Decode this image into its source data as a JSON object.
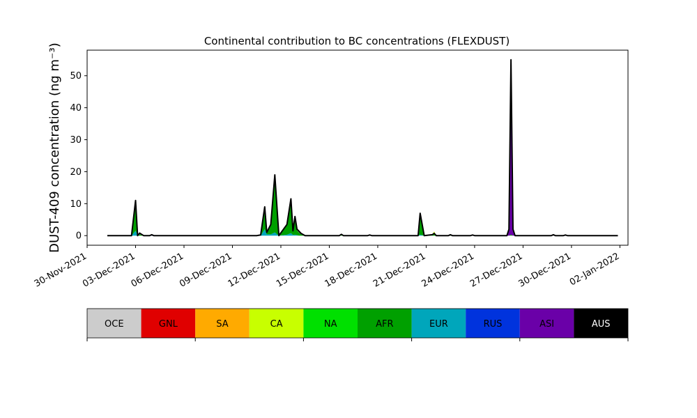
{
  "chart_data": {
    "type": "area",
    "title": "Continental contribution to BC concentrations (FLEXDUST)",
    "xlabel": "",
    "ylabel": "DUST-409 concentration (ng m⁻³)",
    "ylim": [
      -3,
      58
    ],
    "yticks": [
      0,
      10,
      20,
      30,
      40,
      50
    ],
    "xlim": [
      "2021-11-30T00:00",
      "2022-01-02T12:00"
    ],
    "xticks": [
      "30-Nov-2021",
      "03-Dec-2021",
      "06-Dec-2021",
      "09-Dec-2021",
      "12-Dec-2021",
      "15-Dec-2021",
      "18-Dec-2021",
      "21-Dec-2021",
      "24-Dec-2021",
      "27-Dec-2021",
      "30-Dec-2021",
      "02-Jan-2022"
    ],
    "xtick_dates": [
      "2021-11-30",
      "2021-12-03",
      "2021-12-06",
      "2021-12-09",
      "2021-12-12",
      "2021-12-15",
      "2021-12-18",
      "2021-12-21",
      "2021-12-24",
      "2021-12-27",
      "2021-12-30",
      "2022-01-02"
    ],
    "grid": false,
    "stack_order": [
      "EUR",
      "AFR",
      "NA",
      "CA",
      "ASI",
      "RUS"
    ],
    "series": [
      {
        "name": "NA",
        "color": "#00e000",
        "points": [
          [
            "2021-12-15T15:00",
            0
          ],
          [
            "2021-12-15T18:00",
            0.4
          ],
          [
            "2021-12-15T21:00",
            0
          ],
          [
            "2021-12-21T09:00",
            0
          ],
          [
            "2021-12-21T12:00",
            0.6
          ],
          [
            "2021-12-21T15:00",
            0
          ],
          [
            "2021-12-22T09:00",
            0
          ],
          [
            "2021-12-22T12:00",
            0.4
          ],
          [
            "2021-12-22T15:00",
            0
          ]
        ]
      },
      {
        "name": "CA",
        "color": "#c8ff00",
        "points": [
          [
            "2021-12-21T09:00",
            0
          ],
          [
            "2021-12-21T12:00",
            0.4
          ],
          [
            "2021-12-21T15:00",
            0
          ]
        ]
      },
      {
        "name": "AFR",
        "color": "#00a000",
        "points": [
          [
            "2021-12-02T18:00",
            0
          ],
          [
            "2021-12-03T00:00",
            9.0
          ],
          [
            "2021-12-03T03:00",
            0
          ],
          [
            "2021-12-03T06:00",
            0.4
          ],
          [
            "2021-12-03T12:00",
            0
          ],
          [
            "2021-12-10T18:00",
            0
          ],
          [
            "2021-12-11T00:00",
            6.5
          ],
          [
            "2021-12-11T03:00",
            0.5
          ],
          [
            "2021-12-11T09:00",
            3.0
          ],
          [
            "2021-12-11T15:00",
            17.5
          ],
          [
            "2021-12-11T21:00",
            0
          ],
          [
            "2021-12-12T09:00",
            3.0
          ],
          [
            "2021-12-12T15:00",
            10.5
          ],
          [
            "2021-12-12T18:00",
            1.0
          ],
          [
            "2021-12-12T21:00",
            5.5
          ],
          [
            "2021-12-13T00:00",
            1.5
          ],
          [
            "2021-12-13T06:00",
            0.4
          ],
          [
            "2021-12-13T12:00",
            0
          ],
          [
            "2021-12-20T12:00",
            0
          ],
          [
            "2021-12-20T15:00",
            6.0
          ],
          [
            "2021-12-20T21:00",
            0
          ],
          [
            "2021-12-21T09:00",
            0.3
          ],
          [
            "2021-12-21T12:00",
            0.3
          ],
          [
            "2021-12-21T15:00",
            0
          ],
          [
            "2021-12-26T03:00",
            0
          ],
          [
            "2021-12-26T06:00",
            0.3
          ],
          [
            "2021-12-26T09:00",
            0
          ]
        ]
      },
      {
        "name": "EUR",
        "color": "#00a6bb",
        "points": [
          [
            "2021-12-02T18:00",
            0
          ],
          [
            "2021-12-03T00:00",
            1.5
          ],
          [
            "2021-12-03T03:00",
            0
          ],
          [
            "2021-12-10T18:00",
            0
          ],
          [
            "2021-12-11T00:00",
            2.0
          ],
          [
            "2021-12-11T03:00",
            0.4
          ],
          [
            "2021-12-11T09:00",
            0.4
          ],
          [
            "2021-12-11T15:00",
            1.0
          ],
          [
            "2021-12-11T21:00",
            0
          ],
          [
            "2021-12-12T09:00",
            0.3
          ],
          [
            "2021-12-12T15:00",
            0.8
          ],
          [
            "2021-12-12T18:00",
            0.2
          ],
          [
            "2021-12-12T21:00",
            0.3
          ],
          [
            "2021-12-13T03:00",
            0
          ],
          [
            "2021-12-20T12:00",
            0
          ],
          [
            "2021-12-20T15:00",
            0.3
          ],
          [
            "2021-12-20T21:00",
            0
          ]
        ]
      },
      {
        "name": "ASI",
        "color": "#6a00a8",
        "points": [
          [
            "2021-12-26T00:00",
            0
          ],
          [
            "2021-12-26T03:00",
            1.5
          ],
          [
            "2021-12-26T06:00",
            52.5
          ],
          [
            "2021-12-26T09:00",
            1.5
          ],
          [
            "2021-12-26T12:00",
            0
          ]
        ]
      },
      {
        "name": "RUS",
        "color": "#0033dd",
        "points": [
          [
            "2021-12-03T21:00",
            0
          ],
          [
            "2021-12-04T00:00",
            0.2
          ],
          [
            "2021-12-04T03:00",
            0
          ],
          [
            "2021-12-17T09:00",
            0
          ],
          [
            "2021-12-17T12:00",
            0.2
          ],
          [
            "2021-12-17T15:00",
            0
          ],
          [
            "2021-12-26T03:00",
            0
          ],
          [
            "2021-12-26T06:00",
            1.0
          ],
          [
            "2021-12-26T09:00",
            0
          ],
          [
            "2021-12-29T12:00",
            0
          ],
          [
            "2021-12-29T15:00",
            0.2
          ],
          [
            "2021-12-29T18:00",
            0
          ]
        ]
      }
    ],
    "total_line": {
      "name": "Total",
      "color": "#000000",
      "points": [
        [
          "2021-12-01T06:00",
          0
        ],
        [
          "2021-12-02T18:00",
          0
        ],
        [
          "2021-12-03T00:00",
          11.0
        ],
        [
          "2021-12-03T03:00",
          0
        ],
        [
          "2021-12-03T06:00",
          0.8
        ],
        [
          "2021-12-03T12:00",
          0
        ],
        [
          "2021-12-03T21:00",
          0
        ],
        [
          "2021-12-04T00:00",
          0.3
        ],
        [
          "2021-12-04T03:00",
          0
        ],
        [
          "2021-12-10T12:00",
          0
        ],
        [
          "2021-12-10T18:00",
          0.2
        ],
        [
          "2021-12-11T00:00",
          9.0
        ],
        [
          "2021-12-11T03:00",
          1.0
        ],
        [
          "2021-12-11T09:00",
          3.5
        ],
        [
          "2021-12-11T15:00",
          19.0
        ],
        [
          "2021-12-11T21:00",
          0
        ],
        [
          "2021-12-12T09:00",
          3.5
        ],
        [
          "2021-12-12T15:00",
          11.5
        ],
        [
          "2021-12-12T18:00",
          1.5
        ],
        [
          "2021-12-12T21:00",
          6.0
        ],
        [
          "2021-12-13T00:00",
          2.0
        ],
        [
          "2021-12-13T06:00",
          0.7
        ],
        [
          "2021-12-13T12:00",
          0
        ],
        [
          "2021-12-15T15:00",
          0
        ],
        [
          "2021-12-15T18:00",
          0.4
        ],
        [
          "2021-12-15T21:00",
          0
        ],
        [
          "2021-12-17T09:00",
          0
        ],
        [
          "2021-12-17T12:00",
          0.2
        ],
        [
          "2021-12-17T15:00",
          0
        ],
        [
          "2021-12-20T12:00",
          0
        ],
        [
          "2021-12-20T15:00",
          7.0
        ],
        [
          "2021-12-20T21:00",
          0
        ],
        [
          "2021-12-21T09:00",
          0.3
        ],
        [
          "2021-12-21T12:00",
          0.7
        ],
        [
          "2021-12-21T15:00",
          0
        ],
        [
          "2021-12-22T09:00",
          0
        ],
        [
          "2021-12-22T12:00",
          0.3
        ],
        [
          "2021-12-22T15:00",
          0
        ],
        [
          "2021-12-23T18:00",
          0
        ],
        [
          "2021-12-23T21:00",
          0.2
        ],
        [
          "2021-12-24T00:00",
          0
        ],
        [
          "2021-12-26T00:00",
          0
        ],
        [
          "2021-12-26T03:00",
          2.0
        ],
        [
          "2021-12-26T06:00",
          55.0
        ],
        [
          "2021-12-26T09:00",
          2.0
        ],
        [
          "2021-12-26T12:00",
          0
        ],
        [
          "2021-12-28T18:00",
          0
        ],
        [
          "2021-12-28T21:00",
          0.3
        ],
        [
          "2021-12-29T00:00",
          0
        ],
        [
          "2021-12-29T12:00",
          0
        ],
        [
          "2021-12-29T15:00",
          0.2
        ],
        [
          "2021-12-29T18:00",
          0
        ],
        [
          "2022-01-01T21:00",
          0
        ]
      ]
    }
  },
  "legend": {
    "items": [
      {
        "label": "OCE",
        "color": "#cccccc",
        "text_color": "#000000"
      },
      {
        "label": "GNL",
        "color": "#e00000",
        "text_color": "#000000"
      },
      {
        "label": "SA",
        "color": "#ffaa00",
        "text_color": "#000000"
      },
      {
        "label": "CA",
        "color": "#c8ff00",
        "text_color": "#000000"
      },
      {
        "label": "NA",
        "color": "#00e000",
        "text_color": "#000000"
      },
      {
        "label": "AFR",
        "color": "#00a000",
        "text_color": "#000000"
      },
      {
        "label": "EUR",
        "color": "#00a6bb",
        "text_color": "#000000"
      },
      {
        "label": "RUS",
        "color": "#0033dd",
        "text_color": "#000000"
      },
      {
        "label": "ASI",
        "color": "#6a00a8",
        "text_color": "#000000"
      },
      {
        "label": "AUS",
        "color": "#000000",
        "text_color": "#ffffff"
      }
    ]
  }
}
